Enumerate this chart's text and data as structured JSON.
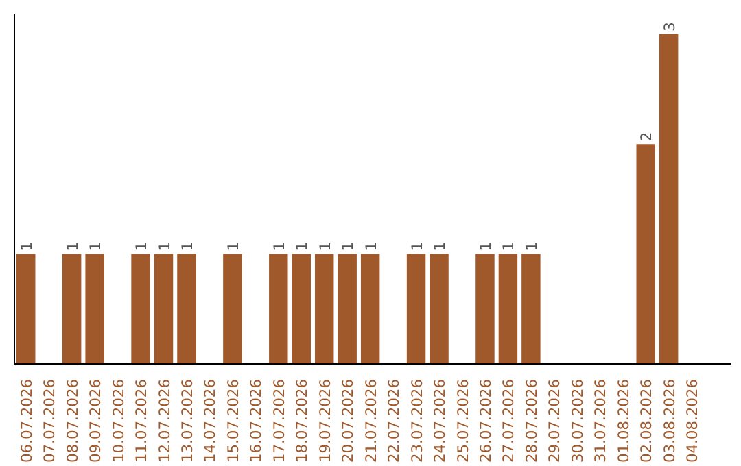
{
  "chart_data": {
    "type": "bar",
    "categories": [
      "06.07.2026",
      "07.07.2026",
      "08.07.2026",
      "09.07.2026",
      "10.07.2026",
      "11.07.2026",
      "12.07.2026",
      "13.07.2026",
      "14.07.2026",
      "15.07.2026",
      "16.07.2026",
      "17.07.2026",
      "18.07.2026",
      "19.07.2026",
      "20.07.2026",
      "21.07.2026",
      "22.07.2026",
      "23.07.2026",
      "24.07.2026",
      "25.07.2026",
      "26.07.2026",
      "27.07.2026",
      "28.07.2026",
      "29.07.2026",
      "30.07.2026",
      "31.07.2026",
      "01.08.2026",
      "02.08.2026",
      "03.08.2026",
      "04.08.2026"
    ],
    "values": [
      1,
      0,
      1,
      1,
      0,
      1,
      1,
      1,
      0,
      1,
      0,
      1,
      1,
      1,
      1,
      1,
      0,
      1,
      1,
      0,
      1,
      1,
      1,
      0,
      0,
      0,
      0,
      2,
      3,
      0
    ],
    "value_labels": [
      "1",
      null,
      "1",
      "1",
      null,
      "1",
      "1",
      "1",
      null,
      "1",
      null,
      "1",
      "1",
      "1",
      "1",
      "1",
      null,
      "1",
      "1",
      null,
      "1",
      "1",
      "1",
      null,
      null,
      null,
      null,
      "2",
      "3",
      null
    ],
    "color": "#a0592b",
    "grid": false,
    "tick_labels": "x"
  }
}
